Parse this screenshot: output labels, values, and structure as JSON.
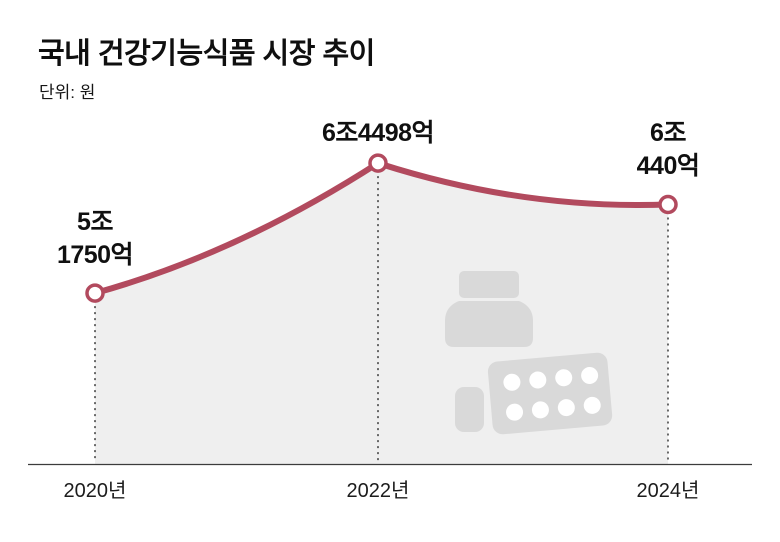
{
  "header": {
    "title": "국내 건강기능식품 시장 추이",
    "unit": "단위: 원"
  },
  "chart_data": {
    "type": "area",
    "title": "국내 건강기능식품 시장 추이",
    "unit": "원",
    "categories": [
      "2020년",
      "2022년",
      "2024년"
    ],
    "values": [
      51750,
      64498,
      60440
    ],
    "value_unit": "억",
    "point_labels": [
      "5조\n1750억",
      "6조4498억",
      "6조\n440억"
    ],
    "ylim": [
      35000,
      65000
    ],
    "grid": false,
    "legend": false,
    "line_color": "#b24a5e",
    "fill_color": "#efefef",
    "icon_color": "#d9d9d9",
    "icons": [
      "pill-bottle-icon",
      "blister-pack-icon"
    ]
  }
}
